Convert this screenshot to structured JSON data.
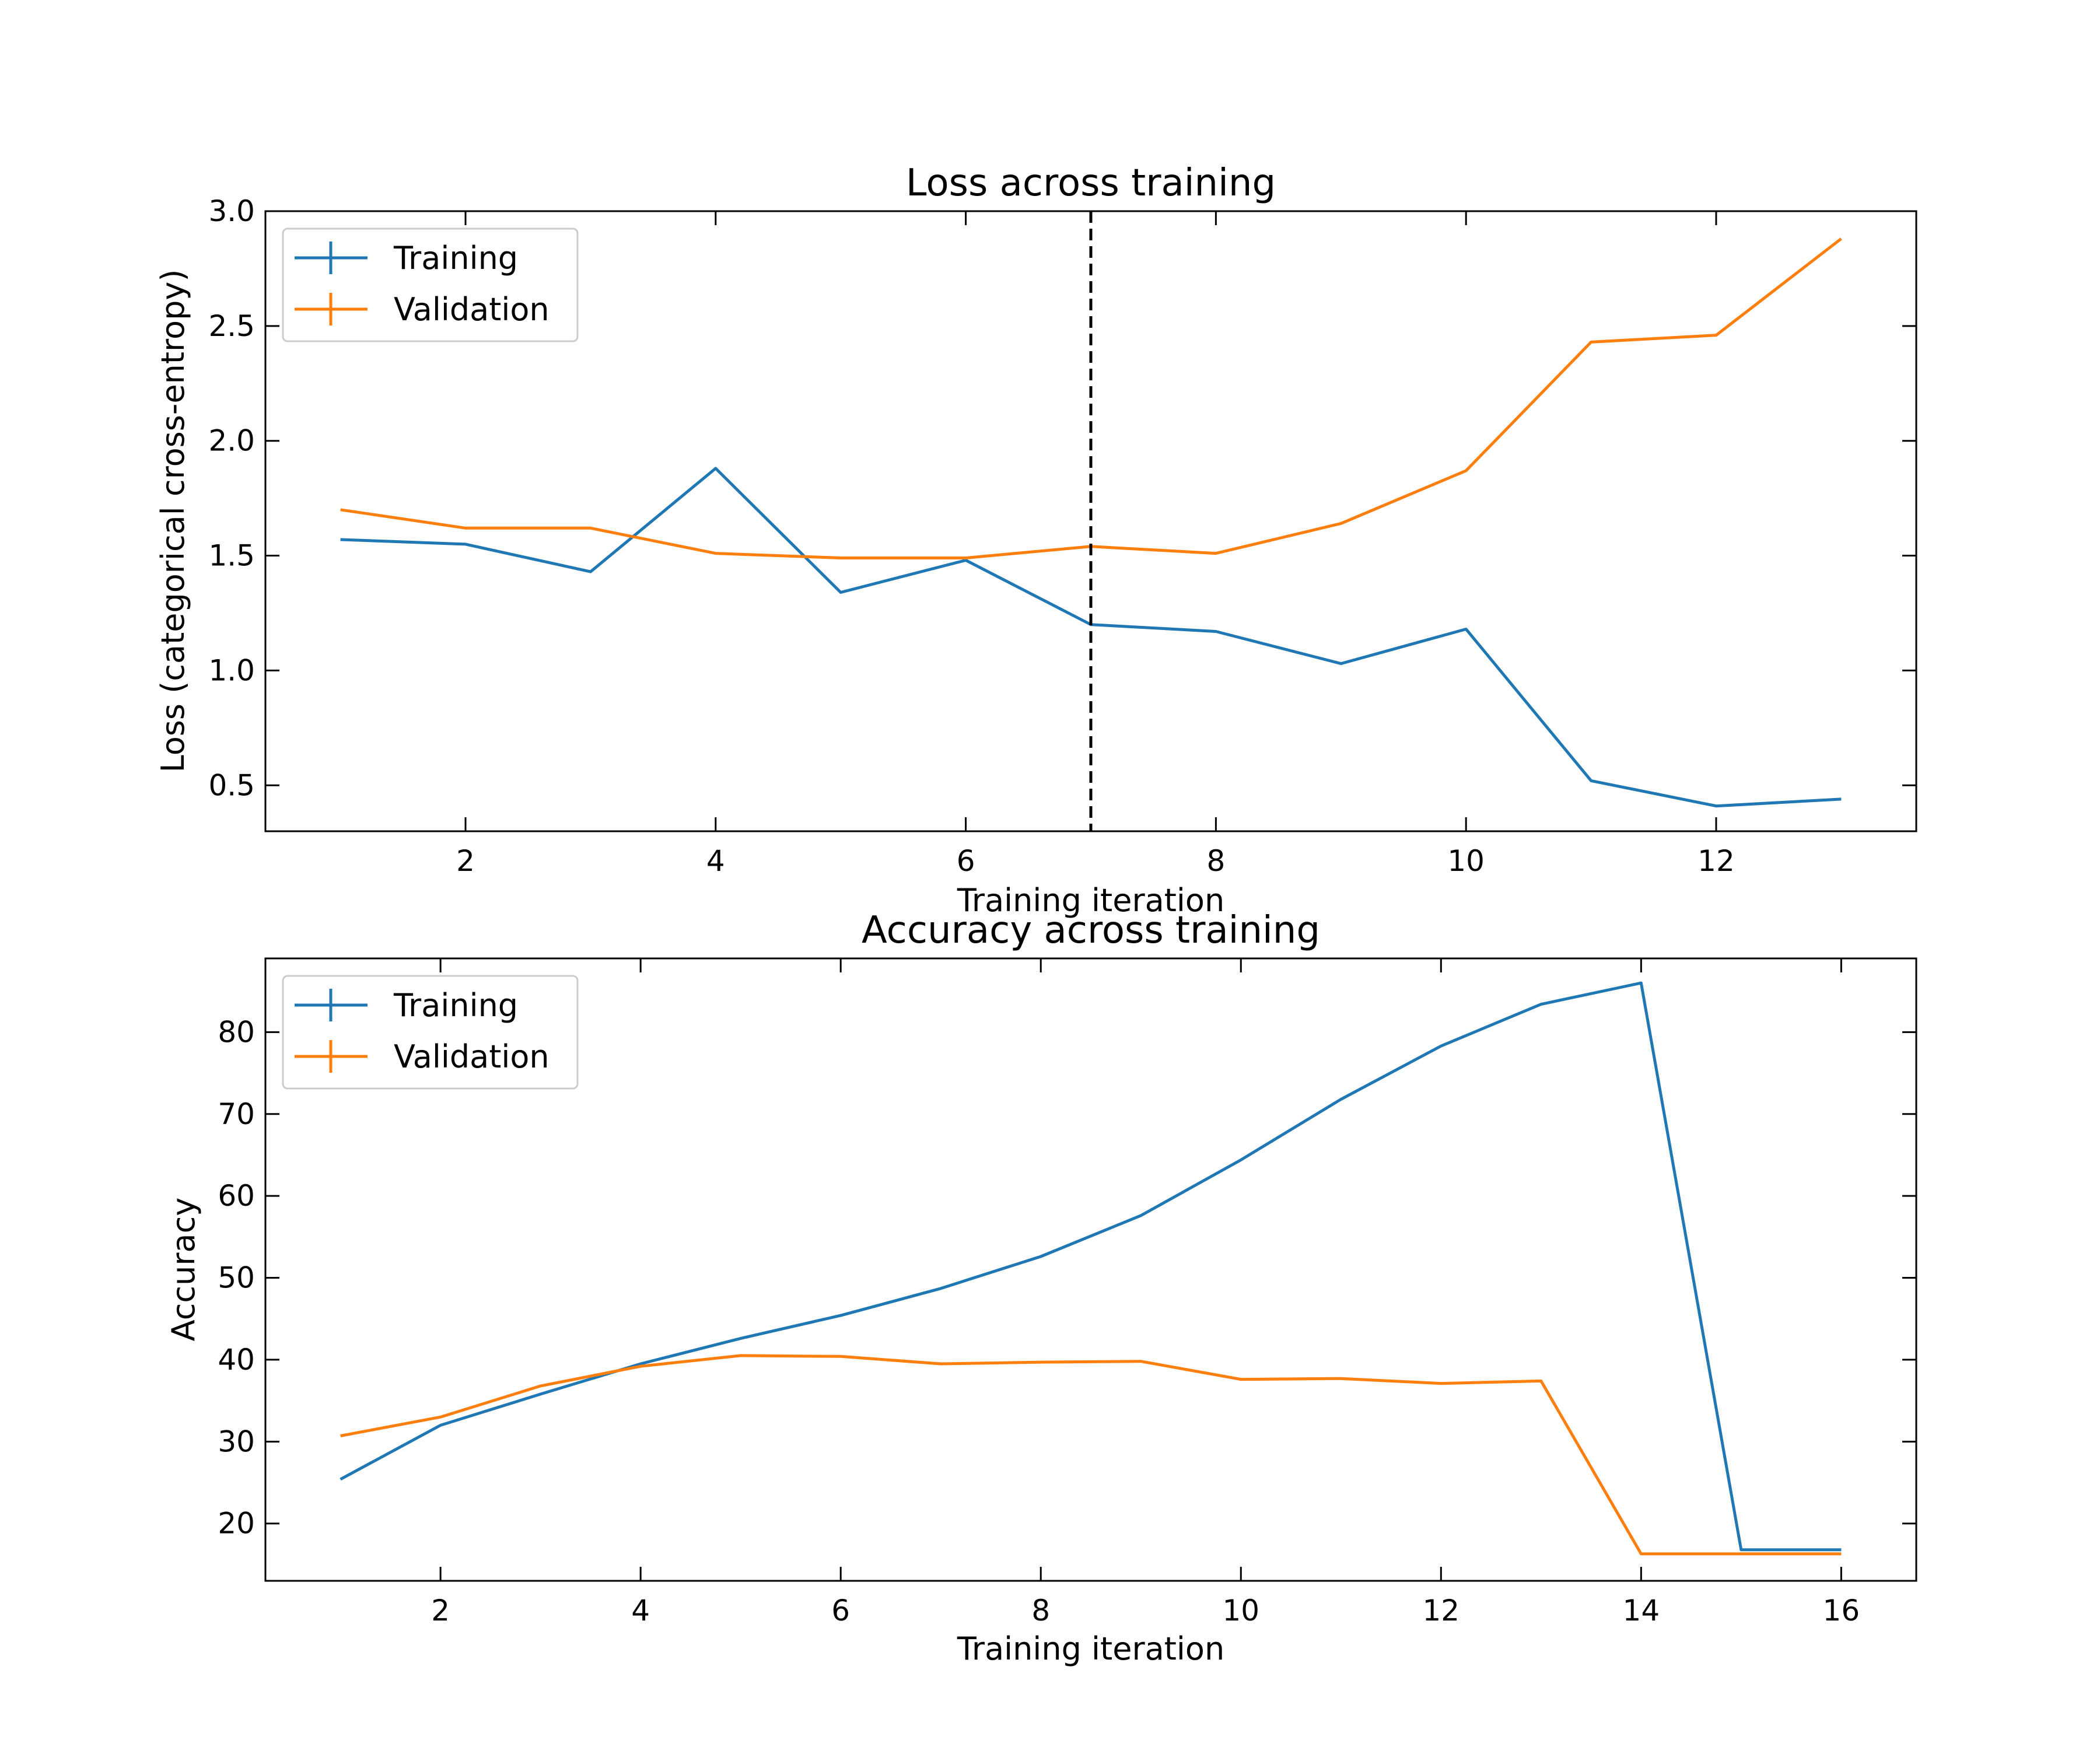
{
  "chart_data": [
    {
      "type": "line",
      "title": "Loss across training",
      "xlabel": "Training iteration",
      "ylabel": "Loss (categorical cross-entropy)",
      "xlim": [
        0.4,
        13.6
      ],
      "ylim": [
        0.3,
        3.0
      ],
      "xticks": [
        2,
        4,
        6,
        8,
        10,
        12
      ],
      "yticks": [
        0.5,
        1.0,
        1.5,
        2.0,
        2.5,
        3.0
      ],
      "xtick_labels": [
        "2",
        "4",
        "6",
        "8",
        "10",
        "12"
      ],
      "ytick_labels": [
        "0.5",
        "1.0",
        "1.5",
        "2.0",
        "2.5",
        "3.0"
      ],
      "legend_position": "top-left",
      "grid": false,
      "vline": {
        "x": 7,
        "style": "dashed",
        "color": "#000000"
      },
      "series": [
        {
          "name": "Training",
          "color": "#1f77b4",
          "x": [
            1,
            2,
            3,
            4,
            5,
            6,
            7,
            8,
            9,
            10,
            11,
            12,
            13
          ],
          "values": [
            1.57,
            1.55,
            1.43,
            1.88,
            1.34,
            1.48,
            1.2,
            1.17,
            1.03,
            1.18,
            0.52,
            0.41,
            0.44
          ]
        },
        {
          "name": "Validation",
          "color": "#ff7f0e",
          "x": [
            1,
            2,
            3,
            4,
            5,
            6,
            7,
            8,
            9,
            10,
            11,
            12,
            13
          ],
          "values": [
            1.7,
            1.62,
            1.62,
            1.51,
            1.49,
            1.49,
            1.54,
            1.51,
            1.64,
            1.87,
            2.43,
            2.46,
            2.88
          ]
        }
      ]
    },
    {
      "type": "line",
      "title": "Accuracy across training",
      "xlabel": "Training iteration",
      "ylabel": "Accuracy",
      "xlim": [
        0.25,
        16.75
      ],
      "ylim": [
        13,
        89
      ],
      "xticks": [
        2,
        4,
        6,
        8,
        10,
        12,
        14,
        16
      ],
      "yticks": [
        20,
        30,
        40,
        50,
        60,
        70,
        80
      ],
      "xtick_labels": [
        "2",
        "4",
        "6",
        "8",
        "10",
        "12",
        "14",
        "16"
      ],
      "ytick_labels": [
        "20",
        "30",
        "40",
        "50",
        "60",
        "70",
        "80"
      ],
      "legend_position": "top-left",
      "grid": false,
      "series": [
        {
          "name": "Training",
          "color": "#1f77b4",
          "x": [
            1,
            2,
            3,
            4,
            5,
            6,
            7,
            8,
            9,
            10,
            11,
            12,
            13,
            14,
            15,
            16
          ],
          "values": [
            25.4,
            32.0,
            35.8,
            39.5,
            42.6,
            45.4,
            48.7,
            52.6,
            57.6,
            64.4,
            71.8,
            78.3,
            83.4,
            86.0,
            16.8,
            16.8
          ]
        },
        {
          "name": "Validation",
          "color": "#ff7f0e",
          "x": [
            1,
            2,
            3,
            4,
            5,
            6,
            7,
            8,
            9,
            10,
            11,
            12,
            13,
            14,
            15,
            16
          ],
          "values": [
            30.7,
            33.0,
            36.8,
            39.2,
            40.5,
            40.4,
            39.5,
            39.7,
            39.8,
            37.6,
            37.7,
            37.1,
            37.4,
            16.3,
            16.3,
            16.3
          ]
        }
      ]
    }
  ]
}
